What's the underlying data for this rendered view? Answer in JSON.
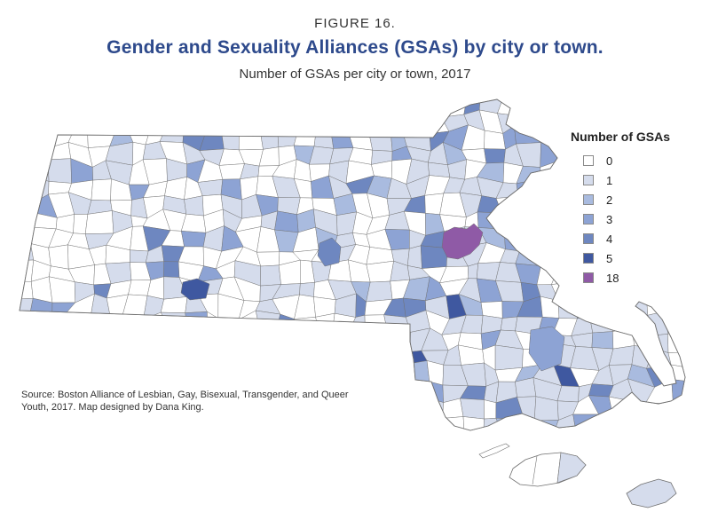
{
  "figure_label": "FIGURE 16.",
  "title": "Gender and Sexuality Alliances (GSAs) by city or town.",
  "subtitle": "Number of GSAs per city or town, 2017",
  "legend": {
    "title": "Number of GSAs",
    "items": [
      {
        "label": "0",
        "color": "#ffffff"
      },
      {
        "label": "1",
        "color": "#d5dcec"
      },
      {
        "label": "2",
        "color": "#a9bbdf"
      },
      {
        "label": "3",
        "color": "#8da3d4"
      },
      {
        "label": "4",
        "color": "#6e87c0"
      },
      {
        "label": "5",
        "color": "#3f58a0"
      },
      {
        "label": "18",
        "color": "#8f5aa6"
      }
    ]
  },
  "source": "Source: Boston Alliance of Lesbian, Gay, Bisexual, Transgender, and Queer Youth, 2017. Map designed by Dana King."
}
